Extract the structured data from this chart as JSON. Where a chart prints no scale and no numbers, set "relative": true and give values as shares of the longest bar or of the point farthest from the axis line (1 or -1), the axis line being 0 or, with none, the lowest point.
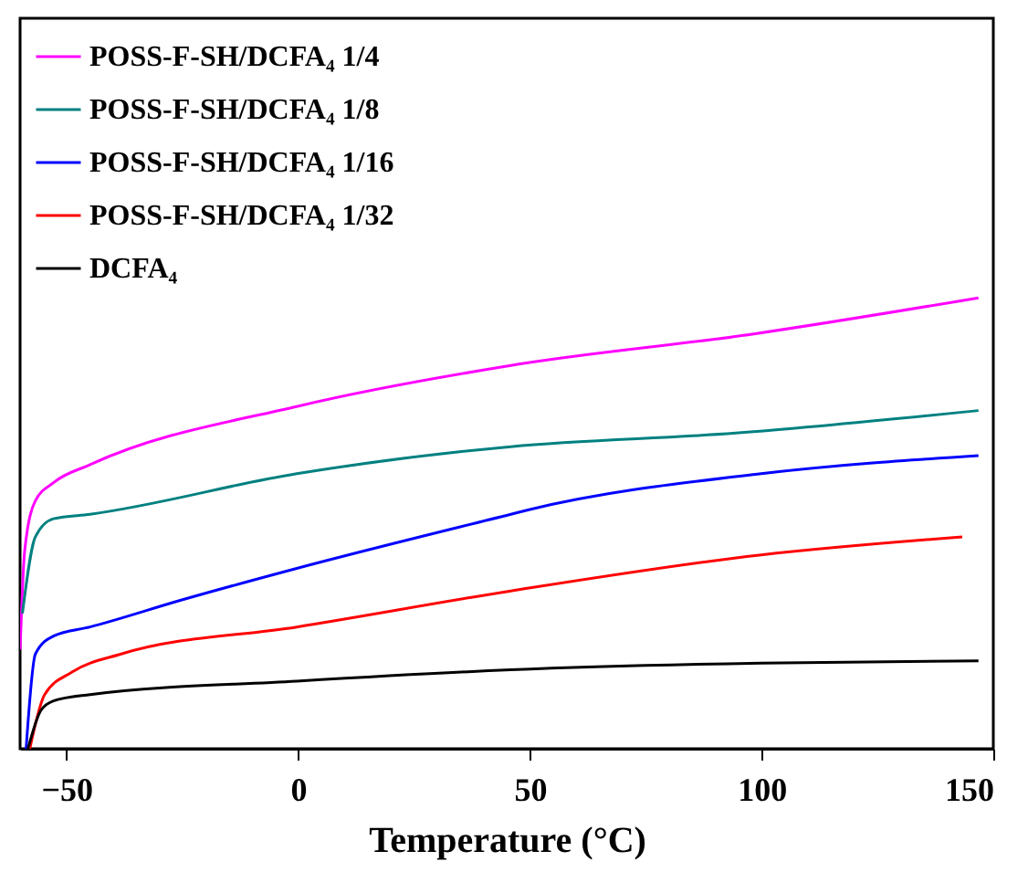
{
  "chart_data": {
    "type": "line",
    "relative": true,
    "xlabel": "Temperature (°C)",
    "xlim": [
      -60,
      150
    ],
    "xticks": [
      -50,
      0,
      50,
      100,
      150
    ],
    "grid": false,
    "legend": "top left",
    "marker": "none",
    "line_style": "solid",
    "series": [
      {
        "name": "POSS-F-SH/DCFA₄ 1/4",
        "color": "#ff00ff",
        "x": [
          -60,
          -59,
          -56.7,
          -52.8,
          -44.9,
          0.1,
          45.9,
          98.3,
          146.8
        ],
        "values": [
          0.22,
          0.44,
          0.55,
          0.59,
          0.63,
          0.76,
          0.85,
          0.92,
          1.0
        ]
      },
      {
        "name": "POSS-F-SH/DCFA₄ 1/8",
        "color": "#008080",
        "x": [
          -59.5,
          -56.7,
          -52.8,
          -44.9,
          -0.3,
          45.9,
          94.4,
          146.8
        ],
        "values": [
          0.3,
          0.47,
          0.51,
          0.52,
          0.61,
          0.67,
          0.7,
          0.75
        ]
      },
      {
        "name": "POSS-F-SH/DCFA₄ 1/16",
        "color": "#0000ff",
        "x": [
          -58.7,
          -56.7,
          -52.8,
          -44.9,
          -25.1,
          -0.3,
          45.9,
          49.8,
          99.9,
          146.8
        ],
        "values": [
          0,
          0.21,
          0.25,
          0.27,
          0.33,
          0.4,
          0.52,
          0.53,
          0.61,
          0.65
        ]
      },
      {
        "name": "POSS-F-SH/DCFA₄ 1/32",
        "color": "#ff0000",
        "x": [
          -57.9,
          -54.7,
          -48.8,
          -38.2,
          -0.3,
          45.9,
          99.9,
          143.3
        ],
        "values": [
          0,
          0.12,
          0.17,
          0.21,
          0.27,
          0.35,
          0.43,
          0.47
        ]
      },
      {
        "name": "DCFA₄",
        "color": "#000000",
        "x": [
          -58.3,
          -55.5,
          -52.8,
          -44.9,
          -0.3,
          45.9,
          99.9,
          146.8
        ],
        "values": [
          0,
          0.085,
          0.106,
          0.12,
          0.15,
          0.175,
          0.19,
          0.195
        ]
      }
    ]
  }
}
